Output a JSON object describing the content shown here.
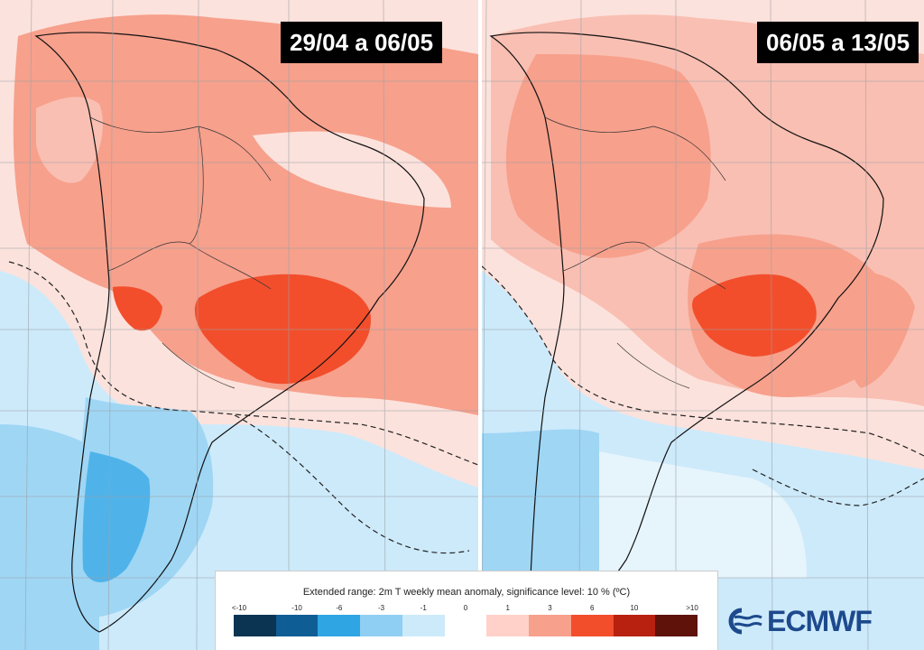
{
  "panels": [
    {
      "date_range": "29/04 a 06/05"
    },
    {
      "date_range": "06/05 a 13/05"
    }
  ],
  "legend": {
    "title": "Extended range: 2m T weekly mean anomaly, significance level: 10 % (ºC)",
    "ticks": [
      "<-10",
      "-10",
      "-6",
      "-3",
      "-1",
      "0",
      "1",
      "3",
      "6",
      "10",
      ">10"
    ],
    "colors": [
      "#0b3452",
      "#0f5d95",
      "#2fa6e3",
      "#8fcff3",
      "#cdeafb",
      "#ffffff",
      "#ffd1c9",
      "#f7a08c",
      "#f24e2c",
      "#b82010",
      "#5e120a"
    ]
  },
  "logo": {
    "text": "ECMWF",
    "color": "#1d4a8c"
  },
  "colors": {
    "warm_light": "#f9bfb2",
    "warm_mid": "#f7a08c",
    "warm_hot": "#f24e2c",
    "cool_light": "#cdeafb",
    "cool_mid": "#9fd6f4",
    "cool_deep": "#4fb3ea"
  }
}
